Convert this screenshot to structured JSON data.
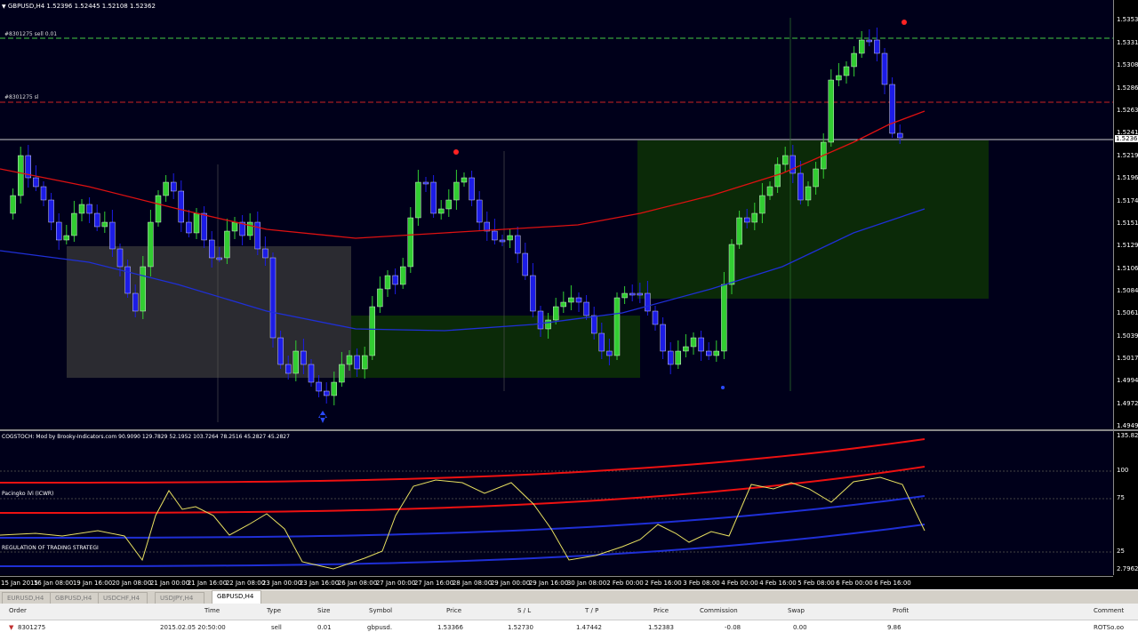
{
  "chart_header": "GBPUSD,H4  1.52396 1.52445 1.52108 1.52362",
  "order_labels": {
    "sell": "#8301275 sell 0.01",
    "sl": "#8301275 sl"
  },
  "price_axis": [
    "1.53530",
    "1.53310",
    "1.53085",
    "1.52860",
    "1.52635",
    "1.52410",
    "1.52362",
    "1.52190",
    "1.51965",
    "1.51740",
    "1.51515",
    "1.51290",
    "1.51065",
    "1.50840",
    "1.50615",
    "1.50395",
    "1.50170",
    "1.49945",
    "1.49720",
    "1.49495"
  ],
  "osc_header": "COGSTOCH: Mod by Brooky-Indicators.com 90.9090 129.7829 52.1952 103.7264 78.2516 45.2827 45.2827",
  "osc_label_1": "Pacingko iVi (ICWR)",
  "osc_label_2": "REGULATION OF TRADING STRATEGI",
  "osc_axis": [
    "135.8298",
    "100",
    "75",
    "25",
    "2.7962"
  ],
  "time_axis": [
    "15 Jan 2015",
    "16 Jan 08:00",
    "19 Jan 16:00",
    "20 Jan 08:00",
    "21 Jan 00:00",
    "21 Jan 16:00",
    "22 Jan 08:00",
    "23 Jan 00:00",
    "23 Jan 16:00",
    "26 Jan 08:00",
    "27 Jan 00:00",
    "27 Jan 16:00",
    "28 Jan 08:00",
    "29 Jan 00:00",
    "29 Jan 16:00",
    "30 Jan 08:00",
    "2 Feb 00:00",
    "2 Feb 16:00",
    "3 Feb 08:00",
    "4 Feb 00:00",
    "4 Feb 16:00",
    "5 Feb 08:00",
    "6 Feb 00:00",
    "6 Feb 16:00"
  ],
  "tabs": [
    "EURUSD,H4",
    "GBPUSD,H4",
    "USDCHF,H4",
    "USDJPY,H4",
    "GBPUSD,H4"
  ],
  "terminal": {
    "headers": [
      "Order",
      "Time",
      "Type",
      "Size",
      "Symbol",
      "Price",
      "S / L",
      "T / P",
      "Price",
      "Commission",
      "Swap",
      "Profit",
      "Comment"
    ],
    "row": [
      "8301275",
      "2015.02.05 20:50:00",
      "sell",
      "0.01",
      "gbpusd.",
      "1.53366",
      "1.52730",
      "1.47442",
      "1.52383",
      "-0.08",
      "0.00",
      "9.86",
      "ROTSo.oo"
    ]
  },
  "colors": {
    "bull": "#32cd32",
    "bear": "#1c1ce6",
    "ma_red": "#dd1111",
    "ma_blue": "#1f2fd6",
    "stoch": "#e8e060",
    "zone_grey": "#3a3a3a",
    "zone_green": "#0b2a08"
  }
}
